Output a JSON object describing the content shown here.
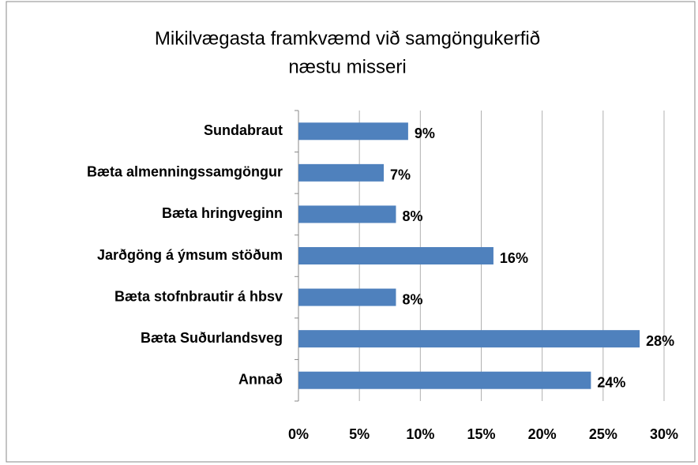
{
  "chart_data": {
    "type": "barh",
    "title": [
      "Mikilvægasta framkvæmd við samgöngukerfið",
      "næstu misseri"
    ],
    "categories": [
      "Sundabraut",
      "Bæta almenningssamgöngur",
      "Bæta hringveginn",
      "Jarðgöng á ýmsum stöðum",
      "Bæta stofnbrautir á hbsv",
      "Bæta Suðurlandsveg",
      "Annað"
    ],
    "values": [
      9,
      7,
      8,
      16,
      8,
      28,
      24
    ],
    "value_labels": [
      "9%",
      "7%",
      "8%",
      "16%",
      "8%",
      "28%",
      "24%"
    ],
    "color": "#4f81bd",
    "xlim": [
      0,
      30
    ],
    "xticks": [
      {
        "value": 0,
        "label": "0%"
      },
      {
        "value": 5,
        "label": "5%"
      },
      {
        "value": 10,
        "label": "10%"
      },
      {
        "value": 15,
        "label": "15%"
      },
      {
        "value": 20,
        "label": "20%"
      },
      {
        "value": 25,
        "label": "25%"
      },
      {
        "value": 30,
        "label": "30%"
      }
    ],
    "grid": true
  }
}
